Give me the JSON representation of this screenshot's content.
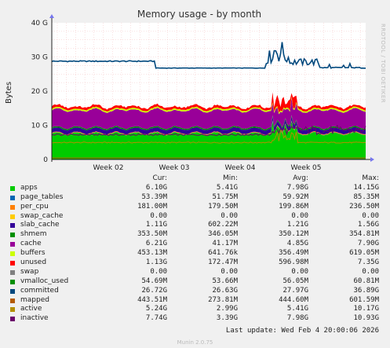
{
  "chart_data": {
    "type": "area",
    "title": "Memory usage - by month",
    "ylabel": "Bytes",
    "ylim": [
      0,
      40
    ],
    "y_unit": "G",
    "y_ticks": [
      "0",
      "10 G",
      "20 G",
      "30 G",
      "40 G"
    ],
    "x_ticks": [
      "Week 02",
      "Week 03",
      "Week 04",
      "Week 05"
    ],
    "grid": true,
    "side_label": "RRDTOOL / TOBI OETIKER",
    "legend_headers": [
      "Cur:",
      "Min:",
      "Avg:",
      "Max:"
    ],
    "stack_bottom_to_top": [
      "apps",
      "page_tables",
      "per_cpu",
      "swap_cache",
      "slab_cache",
      "shmem",
      "cache",
      "buffers",
      "unused",
      "swap"
    ],
    "series": [
      {
        "name": "apps",
        "color": "#00cc00",
        "cur": "6.10G",
        "min": "5.41G",
        "avg": "7.98G",
        "max": "14.15G"
      },
      {
        "name": "page_tables",
        "color": "#0066b3",
        "cur": "53.39M",
        "min": "51.75M",
        "avg": "59.92M",
        "max": "85.35M"
      },
      {
        "name": "per_cpu",
        "color": "#ff8000",
        "cur": "181.00M",
        "min": "179.50M",
        "avg": "199.86M",
        "max": "236.50M"
      },
      {
        "name": "swap_cache",
        "color": "#ffcc00",
        "cur": "0.00",
        "min": "0.00",
        "avg": "0.00",
        "max": "0.00"
      },
      {
        "name": "slab_cache",
        "color": "#330099",
        "cur": "1.11G",
        "min": "602.22M",
        "avg": "1.21G",
        "max": "1.56G"
      },
      {
        "name": "shmem",
        "color": "#008f00",
        "cur": "353.50M",
        "min": "346.05M",
        "avg": "350.12M",
        "max": "354.81M"
      },
      {
        "name": "cache",
        "color": "#990099",
        "cur": "6.21G",
        "min": "41.17M",
        "avg": "4.85G",
        "max": "7.90G"
      },
      {
        "name": "buffers",
        "color": "#ccff00",
        "cur": "453.13M",
        "min": "641.76k",
        "avg": "356.49M",
        "max": "619.05M"
      },
      {
        "name": "unused",
        "color": "#ff0000",
        "cur": "1.13G",
        "min": "172.47M",
        "avg": "596.98M",
        "max": "7.35G"
      },
      {
        "name": "swap",
        "color": "#808080",
        "cur": "0.00",
        "min": "0.00",
        "avg": "0.00",
        "max": "0.00"
      },
      {
        "name": "vmalloc_used",
        "color": "#008f00",
        "cur": "54.69M",
        "min": "53.66M",
        "avg": "56.05M",
        "max": "60.81M"
      },
      {
        "name": "committed",
        "color": "#00487d",
        "cur": "26.72G",
        "min": "26.63G",
        "avg": "27.97G",
        "max": "36.89G"
      },
      {
        "name": "mapped",
        "color": "#b35a00",
        "cur": "443.51M",
        "min": "273.81M",
        "avg": "444.60M",
        "max": "601.59M"
      },
      {
        "name": "active",
        "color": "#b38f00",
        "cur": "5.24G",
        "min": "2.99G",
        "avg": "5.41G",
        "max": "10.17G"
      },
      {
        "name": "inactive",
        "color": "#6b006b",
        "cur": "7.74G",
        "min": "3.39G",
        "avg": "7.98G",
        "max": "10.93G"
      }
    ]
  },
  "footer": {
    "last_update": "Last update: Wed Feb  4 20:00:06 2026",
    "version": "Munin 2.0.75"
  }
}
